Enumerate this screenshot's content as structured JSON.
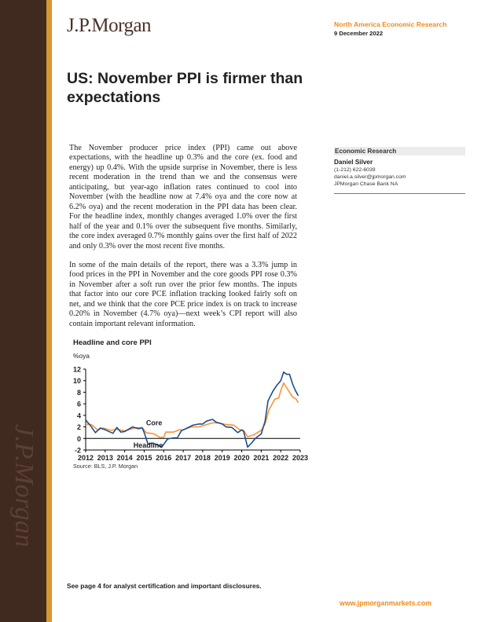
{
  "header": {
    "logo": "J.P.Morgan",
    "series": "North America Economic Research",
    "date": "9 December 2022"
  },
  "title": "US: November PPI is firmer than expectations",
  "body": [
    "The November producer price index (PPI) came out above expectations, with the headline up 0.3% and the core (ex. food and energy) up 0.4%. With the upside surprise in November, there is less recent moderation in the trend than we and the consensus were anticipating, but year-ago inflation rates continued to cool into November (with the headline now at 7.4% oya and the core now at 6.2% oya) and the recent moderation in the PPI data has been clear. For the headline index, monthly changes averaged 1.0% over the first half of the year and 0.1% over the subsequent five months. Similarly, the core index averaged 0.7% monthly gains over the first half of 2022 and only 0.3% over the most recent five months.",
    "In some of the main details of the report, there was a 3.3% jump in food prices in the PPI in November and the core goods PPI rose 0.3% in November after a soft run over the prior few months. The inputs that factor into our core PCE inflation tracking looked fairly soft on net, and we think that the core PCE price index is on track to increase 0.20% in November (4.7% oya)—next week’s CPI report will also contain important relevant information."
  ],
  "aside": {
    "heading": "Economic Research",
    "name": "Daniel Silver",
    "phone": "(1-212) 622-6039",
    "email": "daniel.a.silver@jpmorgan.com",
    "entity": "JPMorgan Chase Bank NA"
  },
  "chart_data": {
    "type": "line",
    "title": "Headline and core PPI",
    "ylabel": "%oya",
    "source": "Source: BLS, J.P. Morgan",
    "ylim": [
      -2,
      12
    ],
    "xlim": [
      2012,
      2023
    ],
    "yticks": [
      "12",
      "10",
      "8",
      "6",
      "4",
      "2",
      "0",
      "-2"
    ],
    "xticks": [
      "2012",
      "2013",
      "2014",
      "2015",
      "2016",
      "2017",
      "2018",
      "2019",
      "2020",
      "2021",
      "2022",
      "2023"
    ],
    "grid": false,
    "series": [
      {
        "name": "Headline",
        "color": "#1f4e8c",
        "x": [
          2012,
          2012.25,
          2012.5,
          2012.75,
          2013,
          2013.4,
          2013.6,
          2013.8,
          2014,
          2014.4,
          2014.7,
          2014.9,
          2015,
          2015.2,
          2015.4,
          2015.6,
          2015.9,
          2016.2,
          2016.5,
          2016.7,
          2016.9,
          2017.2,
          2017.5,
          2017.8,
          2018,
          2018.2,
          2018.5,
          2018.7,
          2019,
          2019.2,
          2019.5,
          2019.8,
          2020,
          2020.1,
          2020.3,
          2020.5,
          2020.7,
          2021,
          2021.2,
          2021.35,
          2021.6,
          2021.8,
          2022,
          2022.15,
          2022.3,
          2022.45,
          2022.6,
          2022.75,
          2022.9
        ],
        "y": [
          3.2,
          2.2,
          1.0,
          1.8,
          1.5,
          0.9,
          1.9,
          1.1,
          1.2,
          2.0,
          1.7,
          1.8,
          1.0,
          -1.0,
          -0.8,
          -1.0,
          -1.5,
          -0.1,
          0.1,
          0.1,
          1.3,
          1.8,
          2.3,
          2.5,
          2.5,
          3.0,
          3.3,
          2.8,
          2.5,
          2.0,
          1.9,
          1.0,
          1.5,
          1.2,
          -1.5,
          -0.8,
          0.0,
          0.8,
          3.0,
          6.5,
          8.2,
          9.2,
          10.0,
          11.5,
          11.1,
          11.1,
          9.5,
          8.3,
          7.4
        ]
      },
      {
        "name": "Core",
        "color": "#f7943a",
        "x": [
          2012,
          2012.3,
          2012.6,
          2012.9,
          2013.3,
          2013.6,
          2014,
          2014.5,
          2014.9,
          2015.1,
          2015.5,
          2015.8,
          2016,
          2016.1,
          2016.5,
          2016.8,
          2017,
          2017.4,
          2017.8,
          2018.2,
          2018.5,
          2018.8,
          2019.2,
          2019.6,
          2019.9,
          2020.1,
          2020.3,
          2020.6,
          2021,
          2021.2,
          2021.4,
          2021.7,
          2021.9,
          2022,
          2022.15,
          2022.3,
          2022.6,
          2022.8,
          2022.9
        ],
        "y": [
          2.5,
          2.4,
          1.5,
          1.8,
          1.4,
          1.6,
          1.3,
          1.8,
          1.9,
          1.0,
          0.8,
          0.2,
          0.2,
          1.1,
          1.1,
          1.5,
          1.5,
          2.0,
          2.0,
          2.4,
          2.7,
          2.7,
          2.4,
          2.3,
          1.5,
          1.4,
          0.3,
          0.6,
          1.4,
          2.5,
          5.0,
          6.8,
          7.0,
          8.3,
          9.6,
          8.8,
          7.2,
          6.8,
          6.2
        ]
      }
    ]
  },
  "footer": {
    "disclosure": "See page 4 for analyst certification and important disclosures.",
    "url": "www.jpmorganmarkets.com"
  }
}
